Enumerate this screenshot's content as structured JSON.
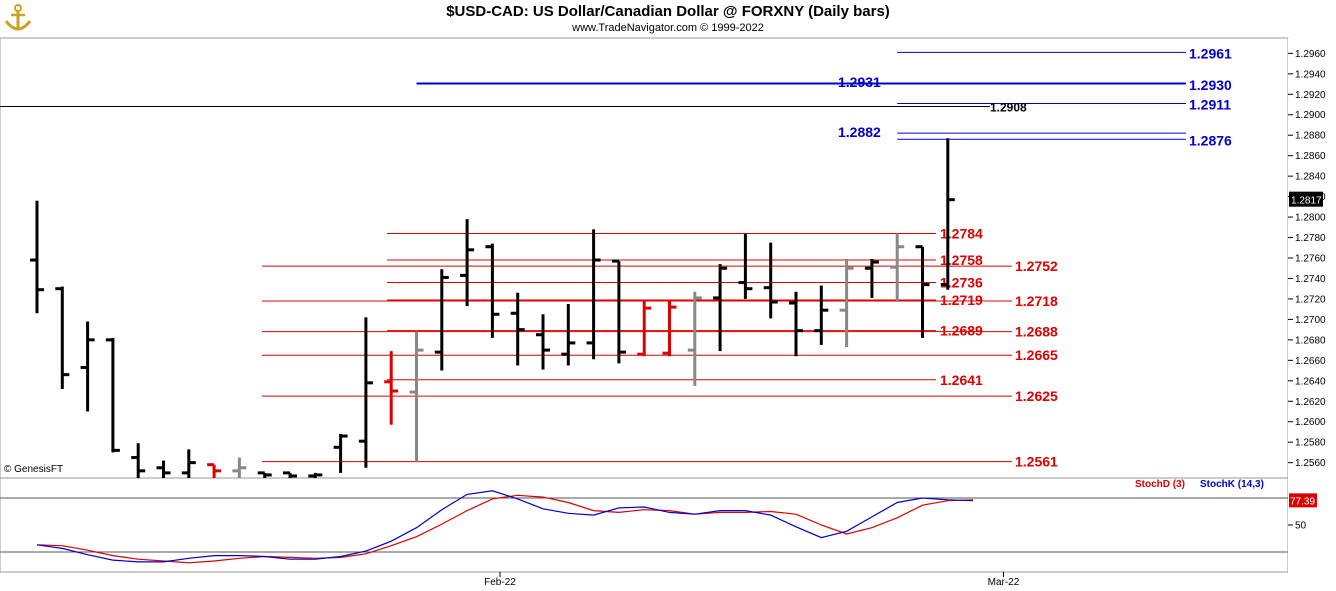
{
  "header": {
    "title": "$USD-CAD:  US Dollar/Canadian Dollar @ FORXNY  (Daily bars)",
    "subtitle": "www.TradeNavigator.com © 1999-2022"
  },
  "watermark": "© GenesisFT",
  "colors": {
    "bar_up": "#000000",
    "bar_red": "#dd0000",
    "bar_gray": "#888888",
    "support_red": "#dd0000",
    "resistance_blue": "#0000cc",
    "stoch_d": "#dd0000",
    "stoch_k": "#0000cc"
  },
  "chart_data": [
    {
      "type": "ohlc",
      "title": "$USD-CAD:  US Dollar/Canadian Dollar @ FORXNY  (Daily bars)",
      "ylim": [
        1.2545,
        1.2975
      ],
      "yticks": [
        "1.2960",
        "1.2940",
        "1.2920",
        "1.2900",
        "1.2880",
        "1.2860",
        "1.2840",
        "1.2820",
        "1.2800",
        "1.2780",
        "1.2760",
        "1.2740",
        "1.2720",
        "1.2700",
        "1.2680",
        "1.2660",
        "1.2640",
        "1.2620",
        "1.2600",
        "1.2580",
        "1.2560"
      ],
      "xticks": [
        {
          "label": "Feb-22",
          "index": 18.3
        },
        {
          "label": "Mar-22",
          "index": 38.2
        }
      ],
      "last_price": "1.2817",
      "bars": [
        {
          "o": 1.2758,
          "h": 1.2816,
          "l": 1.2706,
          "c": 1.2729,
          "color": "black"
        },
        {
          "o": 1.273,
          "h": 1.2732,
          "l": 1.2632,
          "c": 1.2646,
          "color": "black"
        },
        {
          "o": 1.2653,
          "h": 1.2698,
          "l": 1.261,
          "c": 1.268,
          "color": "black"
        },
        {
          "o": 1.268,
          "h": 1.2682,
          "l": 1.257,
          "c": 1.2572,
          "color": "black"
        },
        {
          "o": 1.2565,
          "h": 1.2579,
          "l": 1.2545,
          "c": 1.2552,
          "color": "black"
        },
        {
          "o": 1.2555,
          "h": 1.2562,
          "l": 1.2545,
          "c": 1.255,
          "color": "black"
        },
        {
          "o": 1.255,
          "h": 1.2573,
          "l": 1.2545,
          "c": 1.256,
          "color": "black"
        },
        {
          "o": 1.2558,
          "h": 1.2558,
          "l": 1.2545,
          "c": 1.2552,
          "color": "red"
        },
        {
          "o": 1.2552,
          "h": 1.2565,
          "l": 1.2545,
          "c": 1.2555,
          "color": "gray"
        },
        {
          "o": 1.255,
          "h": 1.255,
          "l": 1.2545,
          "c": 1.2548,
          "color": "black"
        },
        {
          "o": 1.255,
          "h": 1.255,
          "l": 1.2545,
          "c": 1.2547,
          "color": "black"
        },
        {
          "o": 1.2547,
          "h": 1.255,
          "l": 1.2545,
          "c": 1.2548,
          "color": "black"
        },
        {
          "o": 1.2575,
          "h": 1.2588,
          "l": 1.255,
          "c": 1.2586,
          "color": "black"
        },
        {
          "o": 1.2581,
          "h": 1.2702,
          "l": 1.2555,
          "c": 1.2638,
          "color": "black"
        },
        {
          "o": 1.2639,
          "h": 1.2669,
          "l": 1.2597,
          "c": 1.263,
          "color": "red"
        },
        {
          "o": 1.2629,
          "h": 1.2688,
          "l": 1.2561,
          "c": 1.267,
          "color": "gray"
        },
        {
          "o": 1.2668,
          "h": 1.2749,
          "l": 1.265,
          "c": 1.2741,
          "color": "black"
        },
        {
          "o": 1.2743,
          "h": 1.2798,
          "l": 1.2713,
          "c": 1.2768,
          "color": "black"
        },
        {
          "o": 1.2771,
          "h": 1.2774,
          "l": 1.2682,
          "c": 1.2705,
          "color": "black"
        },
        {
          "o": 1.2706,
          "h": 1.2726,
          "l": 1.2655,
          "c": 1.269,
          "color": "black"
        },
        {
          "o": 1.2685,
          "h": 1.2705,
          "l": 1.2651,
          "c": 1.267,
          "color": "black"
        },
        {
          "o": 1.2666,
          "h": 1.2715,
          "l": 1.2655,
          "c": 1.2677,
          "color": "black"
        },
        {
          "o": 1.2677,
          "h": 1.2788,
          "l": 1.2661,
          "c": 1.2758,
          "color": "black"
        },
        {
          "o": 1.2757,
          "h": 1.2757,
          "l": 1.2657,
          "c": 1.2668,
          "color": "black"
        },
        {
          "o": 1.2666,
          "h": 1.2719,
          "l": 1.2664,
          "c": 1.2711,
          "color": "red"
        },
        {
          "o": 1.2667,
          "h": 1.2719,
          "l": 1.2664,
          "c": 1.2712,
          "color": "red"
        },
        {
          "o": 1.267,
          "h": 1.2727,
          "l": 1.2635,
          "c": 1.2721,
          "color": "gray"
        },
        {
          "o": 1.2721,
          "h": 1.2754,
          "l": 1.2669,
          "c": 1.275,
          "color": "black"
        },
        {
          "o": 1.2736,
          "h": 1.2784,
          "l": 1.272,
          "c": 1.273,
          "color": "black"
        },
        {
          "o": 1.2731,
          "h": 1.2775,
          "l": 1.2701,
          "c": 1.2717,
          "color": "black"
        },
        {
          "o": 1.2716,
          "h": 1.2727,
          "l": 1.2664,
          "c": 1.2689,
          "color": "black"
        },
        {
          "o": 1.2689,
          "h": 1.2733,
          "l": 1.2675,
          "c": 1.2709,
          "color": "black"
        },
        {
          "o": 1.2709,
          "h": 1.2759,
          "l": 1.2673,
          "c": 1.275,
          "color": "gray"
        },
        {
          "o": 1.275,
          "h": 1.2759,
          "l": 1.2721,
          "c": 1.2756,
          "color": "black"
        },
        {
          "o": 1.2751,
          "h": 1.2784,
          "l": 1.2717,
          "c": 1.2771,
          "color": "gray"
        },
        {
          "o": 1.2771,
          "h": 1.2771,
          "l": 1.2682,
          "c": 1.2734,
          "color": "black"
        },
        {
          "o": 1.2734,
          "h": 1.2877,
          "l": 1.2729,
          "c": 1.2817,
          "color": "black"
        }
      ]
    },
    {
      "type": "line",
      "title": "",
      "ylim": [
        0,
        100
      ],
      "yticks": [
        "50"
      ],
      "reference_lines": [
        80,
        20
      ],
      "last_value": "77.39",
      "series": [
        {
          "name": "StochD (3)",
          "color": "#dd0000",
          "values": [
            28,
            27,
            22,
            16,
            12,
            10,
            8,
            10,
            13,
            15,
            14,
            13,
            14,
            18,
            27,
            37,
            51,
            66,
            79,
            83,
            81,
            75,
            66,
            64,
            67,
            66,
            62,
            64,
            64,
            65,
            62,
            50,
            40,
            47,
            58,
            72,
            77,
            78
          ]
        },
        {
          "name": "StochK (14,3)",
          "color": "#0000cc",
          "values": [
            28,
            24,
            17,
            11,
            9,
            9,
            13,
            16,
            16,
            15,
            12,
            12,
            15,
            21,
            32,
            47,
            67,
            84,
            88,
            79,
            68,
            63,
            61,
            69,
            70,
            64,
            62,
            66,
            66,
            61,
            48,
            36,
            43,
            59,
            75,
            80,
            78,
            77
          ]
        }
      ]
    }
  ],
  "annotations": {
    "blue_levels": [
      {
        "value": 1.2961,
        "label": "1.2961",
        "from": 34,
        "side": "right"
      },
      {
        "value": 1.293,
        "label": "1.2930",
        "from": 15,
        "side": "right"
      },
      {
        "value": 1.2931,
        "label": "1.2931",
        "from": 15,
        "side": "left"
      },
      {
        "value": 1.2911,
        "label": "1.2911",
        "from": 34,
        "side": "right"
      },
      {
        "value": 1.2882,
        "label": "1.2882",
        "from": 34,
        "side": "left"
      },
      {
        "value": 1.2876,
        "label": "1.2876",
        "from": 34,
        "side": "right"
      }
    ],
    "black_level": {
      "value": 1.2908,
      "label": "1.2908"
    },
    "red_levels": [
      {
        "value": 1.2784,
        "label": "1.2784",
        "from": 15,
        "to": 37,
        "side": "mid"
      },
      {
        "value": 1.2758,
        "label": "1.2758",
        "from": 15,
        "to": 37,
        "side": "mid"
      },
      {
        "value": 1.2752,
        "label": "1.2752",
        "from": 10,
        "to": 39,
        "side": "right"
      },
      {
        "value": 1.2736,
        "label": "1.2736",
        "from": 15,
        "to": 37,
        "side": "mid"
      },
      {
        "value": 1.2719,
        "label": "1.2719",
        "from": 15,
        "to": 37,
        "side": "mid"
      },
      {
        "value": 1.2718,
        "label": "1.2718",
        "from": 10,
        "to": 39,
        "side": "right"
      },
      {
        "value": 1.2689,
        "label": "1.2689",
        "from": 15,
        "to": 37,
        "side": "mid"
      },
      {
        "value": 1.2688,
        "label": "1.2688",
        "from": 10,
        "to": 39,
        "side": "right"
      },
      {
        "value": 1.2665,
        "label": "1.2665",
        "from": 10,
        "to": 39,
        "side": "right"
      },
      {
        "value": 1.2641,
        "label": "1.2641",
        "from": 15,
        "to": 37,
        "side": "mid"
      },
      {
        "value": 1.2625,
        "label": "1.2625",
        "from": 10,
        "to": 39,
        "side": "right"
      },
      {
        "value": 1.2561,
        "label": "1.2561",
        "from": 10,
        "to": 39,
        "side": "right"
      }
    ]
  }
}
